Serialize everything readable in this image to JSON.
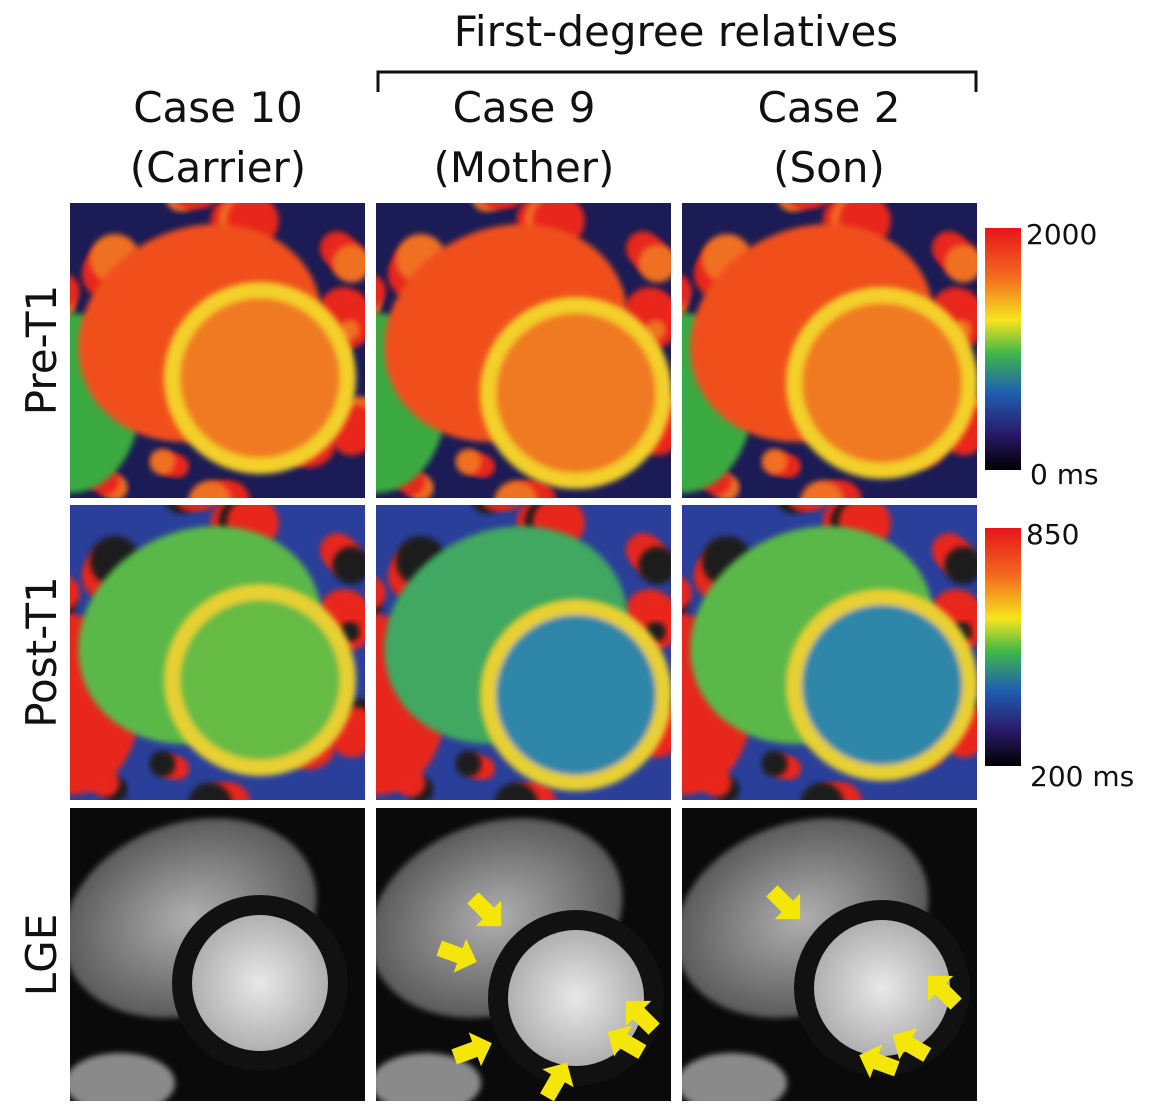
{
  "header": {
    "group_title": "First-degree relatives"
  },
  "columns": [
    {
      "case": "Case 10",
      "role": "(Carrier)"
    },
    {
      "case": "Case 9",
      "role": "(Mother)"
    },
    {
      "case": "Case 2",
      "role": "(Son)"
    }
  ],
  "rows": [
    "Pre-T1",
    "Post-T1",
    "LGE"
  ],
  "colorbars": [
    {
      "max_label": "2000",
      "min_label": "0 ms"
    },
    {
      "max_label": "850",
      "min_label": "200 ms"
    }
  ]
}
